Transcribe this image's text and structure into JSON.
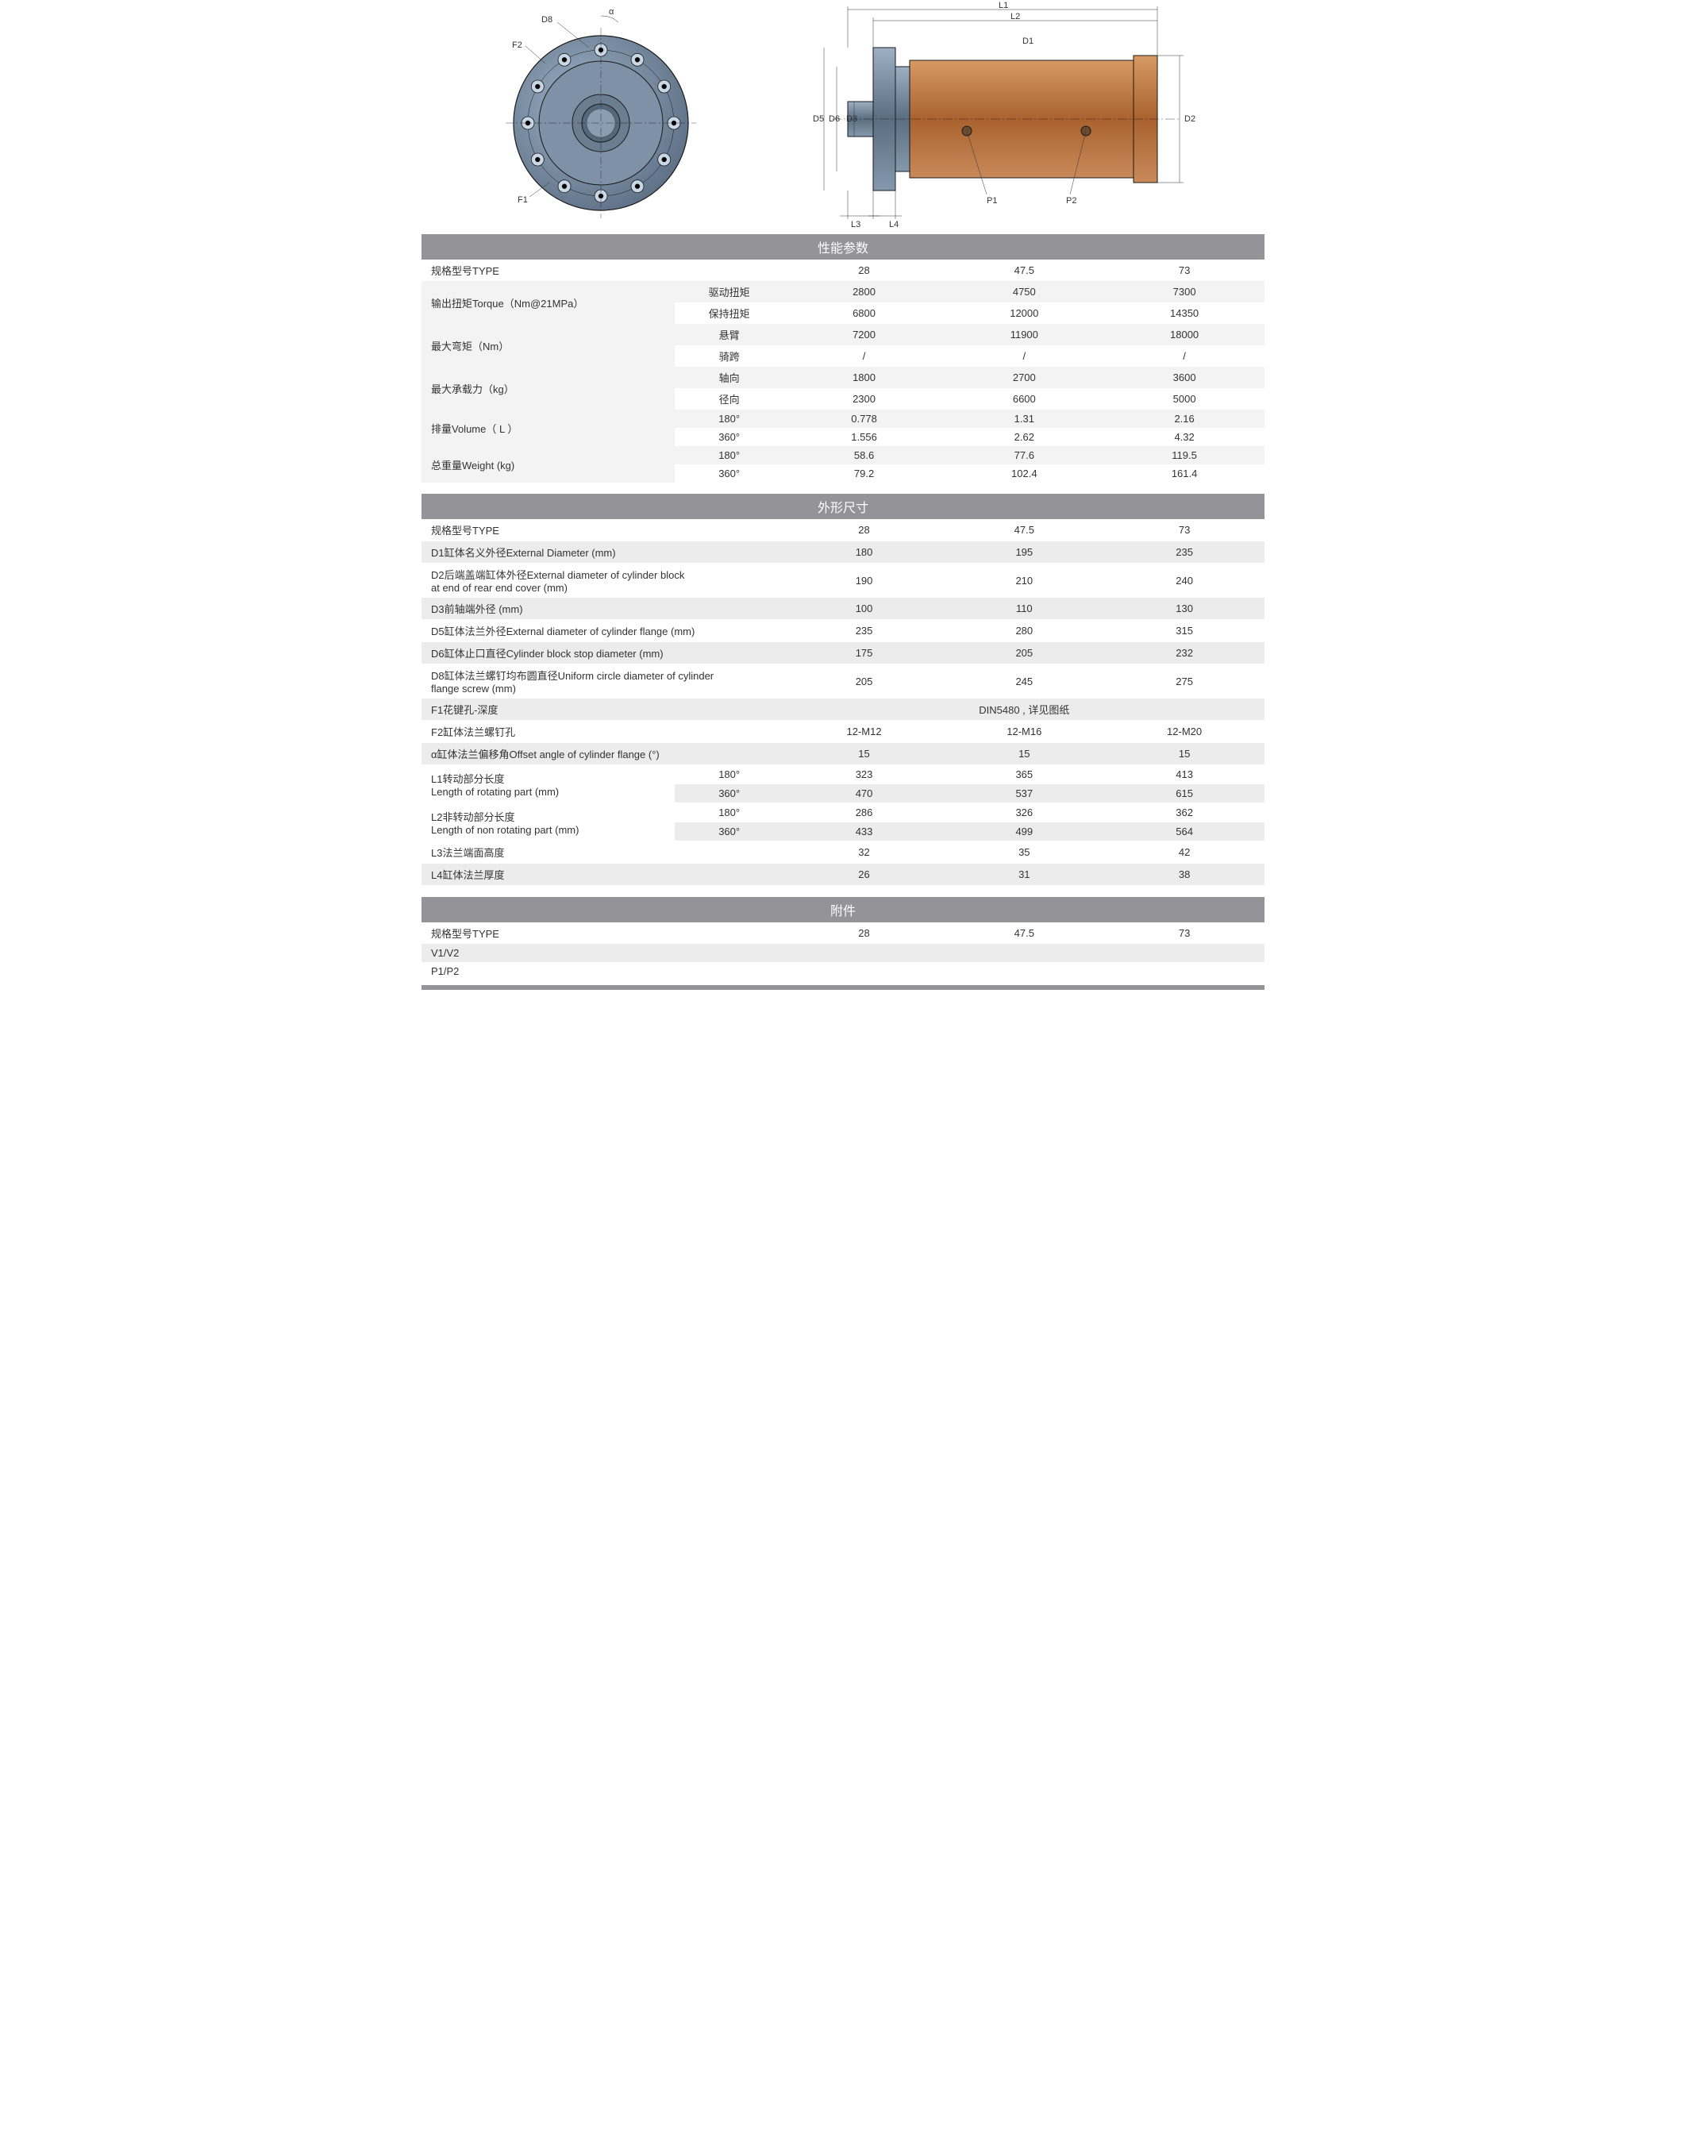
{
  "diagrams": {
    "front_view_labels": {
      "D8": "D8",
      "F2": "F2",
      "F1": "F1",
      "alpha": "α"
    },
    "side_view_labels": {
      "L1": "L1",
      "L2": "L2",
      "D1": "D1",
      "D2": "D2",
      "D3": "D3",
      "D5": "D5",
      "D6": "D6",
      "P1": "P1",
      "P2": "P2",
      "L3": "L3",
      "L4": "L4"
    },
    "colors": {
      "flange": "#6a7a8e",
      "flange_light": "#8da2b6",
      "body": "#b5713d",
      "body_light": "#c98f5e",
      "line": "#1a1a1a"
    }
  },
  "perf": {
    "header": "性能参数",
    "type_label": "规格型号TYPE",
    "types": [
      "28",
      "47.5",
      "73"
    ],
    "rows": [
      {
        "label": "输出扭矩Torque（Nm@21MPa）",
        "subs": [
          {
            "sub": "驱动扭矩",
            "vals": [
              "2800",
              "4750",
              "7300"
            ]
          },
          {
            "sub": "保持扭矩",
            "vals": [
              "6800",
              "12000",
              "14350"
            ]
          }
        ]
      },
      {
        "label": "最大弯矩（Nm）",
        "subs": [
          {
            "sub": "悬臂",
            "vals": [
              "7200",
              "11900",
              "18000"
            ]
          },
          {
            "sub": "骑跨",
            "vals": [
              "/",
              "/",
              "/"
            ]
          }
        ]
      },
      {
        "label": "最大承载力（kg）",
        "subs": [
          {
            "sub": "轴向",
            "vals": [
              "1800",
              "2700",
              "3600"
            ]
          },
          {
            "sub": "径向",
            "vals": [
              "2300",
              "6600",
              "5000"
            ]
          }
        ]
      },
      {
        "label": "排量Volume（ L  ）",
        "subs": [
          {
            "sub": "180°",
            "vals": [
              "0.778",
              "1.31",
              "2.16"
            ]
          },
          {
            "sub": "360°",
            "vals": [
              "1.556",
              "2.62",
              "4.32"
            ]
          }
        ]
      },
      {
        "label": "总重量Weight (kg)",
        "subs": [
          {
            "sub": "180°",
            "vals": [
              "58.6",
              "77.6",
              "119.5"
            ]
          },
          {
            "sub": "360°",
            "vals": [
              "79.2",
              "102.4",
              "161.4"
            ]
          }
        ]
      }
    ]
  },
  "dim": {
    "header": "外形尺寸",
    "type_label": "规格型号TYPE",
    "types": [
      "28",
      "47.5",
      "73"
    ],
    "simple_rows": [
      {
        "label": "D1缸体名义外径External Diameter (mm)",
        "vals": [
          "180",
          "195",
          "235"
        ]
      },
      {
        "label": "D2后端盖端缸体外径External diameter of cylinder block\nat end of rear end cover (mm)",
        "vals": [
          "190",
          "210",
          "240"
        ]
      },
      {
        "label": "D3前轴端外径 (mm)",
        "vals": [
          "100",
          "110",
          "130"
        ]
      },
      {
        "label": "D5缸体法兰外径External diameter of cylinder flange (mm)",
        "vals": [
          "235",
          "280",
          "315"
        ]
      },
      {
        "label": "D6缸体止口直径Cylinder block stop diameter (mm)",
        "vals": [
          "175",
          "205",
          "232"
        ]
      },
      {
        "label": "D8缸体法兰螺钉均布圆直径Uniform circle diameter of cylinder\nflange screw (mm)",
        "vals": [
          "205",
          "245",
          "275"
        ]
      }
    ],
    "f1_label": "F1花键孔-深度",
    "f1_val": "DIN5480 , 详见图纸",
    "f2_label": "F2缸体法兰螺钉孔",
    "f2_vals": [
      "12-M12",
      "12-M16",
      "12-M20"
    ],
    "alpha_label": "α缸体法兰偏移角Offset angle of cylinder flange (°)",
    "alpha_vals": [
      "15",
      "15",
      "15"
    ],
    "paired_rows": [
      {
        "label": "L1转动部分长度\nLength of rotating part (mm)",
        "subs": [
          {
            "sub": "180°",
            "vals": [
              "323",
              "365",
              "413"
            ]
          },
          {
            "sub": "360°",
            "vals": [
              "470",
              "537",
              "615"
            ]
          }
        ]
      },
      {
        "label": "L2非转动部分长度\nLength of non rotating part (mm)",
        "subs": [
          {
            "sub": "180°",
            "vals": [
              "286",
              "326",
              "362"
            ]
          },
          {
            "sub": "360°",
            "vals": [
              "433",
              "499",
              "564"
            ]
          }
        ]
      }
    ],
    "tail_rows": [
      {
        "label": "L3法兰端面高度",
        "vals": [
          "32",
          "35",
          "42"
        ]
      },
      {
        "label": "L4缸体法兰厚度",
        "vals": [
          "26",
          "31",
          "38"
        ]
      }
    ]
  },
  "acc": {
    "header": "附件",
    "type_label": "规格型号TYPE",
    "types": [
      "28",
      "47.5",
      "73"
    ],
    "rows": [
      {
        "label": "V1/V2",
        "vals": [
          "",
          "",
          ""
        ]
      },
      {
        "label": "P1/P2",
        "vals": [
          "",
          "",
          ""
        ]
      }
    ]
  }
}
